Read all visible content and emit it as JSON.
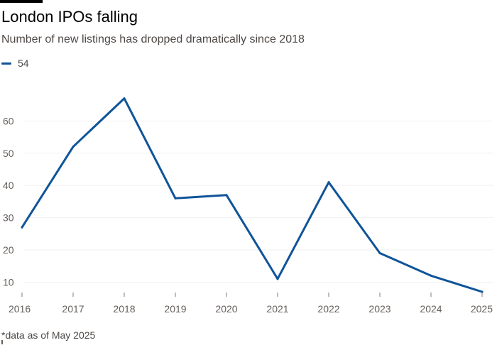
{
  "header": {
    "title": "London IPOs falling",
    "subtitle": "Number of new listings has dropped dramatically since 2018"
  },
  "footnote": "*data as of May 2025",
  "colors": {
    "line": "#0f5499",
    "grid": "#f2f1ef",
    "text": "#66605c"
  },
  "chart_data": {
    "type": "line",
    "title": "London IPOs falling",
    "subtitle": "Number of new listings has dropped dramatically since 2018",
    "xlabel": "",
    "ylabel": "",
    "x": [
      "2016",
      "2017",
      "2018",
      "2019",
      "2020",
      "2021",
      "2022",
      "2023",
      "2024",
      "2025"
    ],
    "series": [
      {
        "name": "54",
        "values": [
          27,
          52,
          67,
          36,
          37,
          11,
          41,
          19,
          12,
          7
        ]
      }
    ],
    "ylim": [
      7,
      70
    ],
    "yticks": [
      10,
      20,
      30,
      40,
      50,
      60
    ],
    "grid": true,
    "legend": "top-left"
  }
}
